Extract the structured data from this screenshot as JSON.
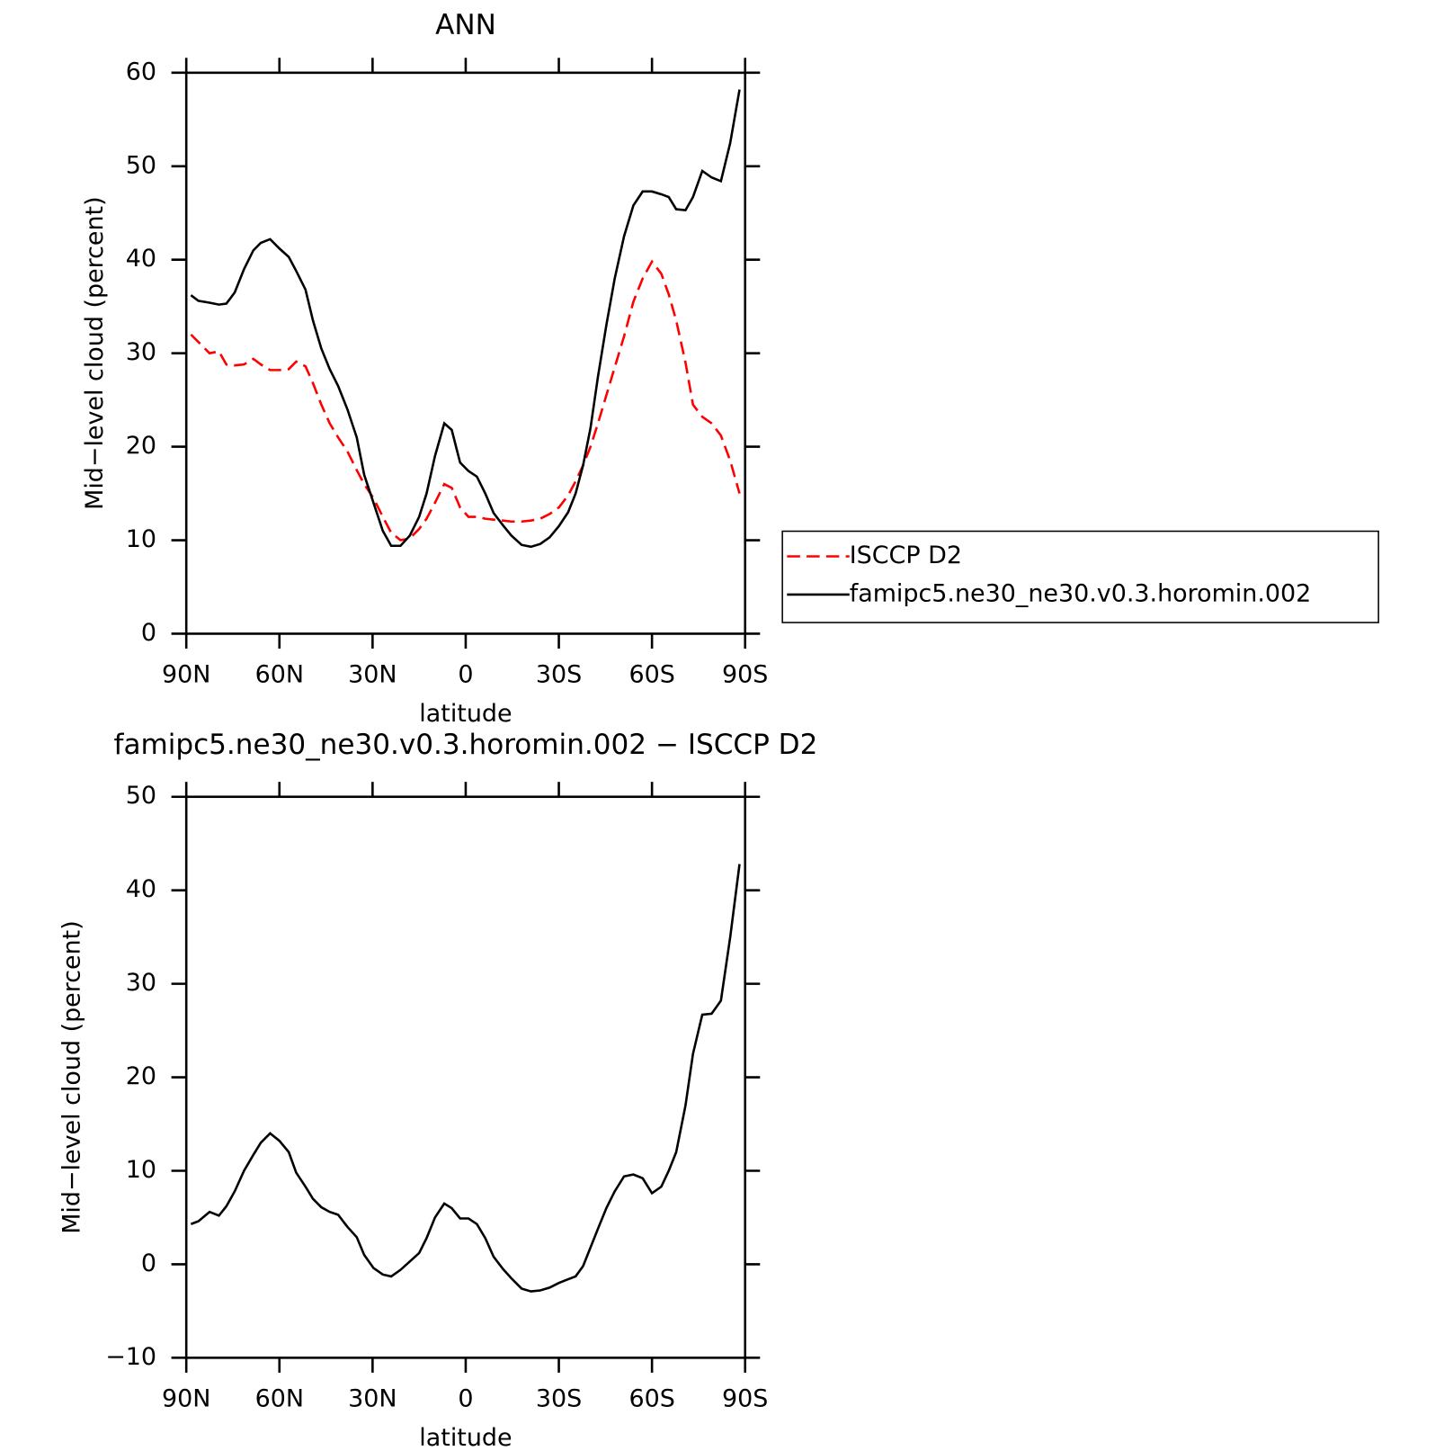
{
  "chart_data": [
    {
      "type": "line",
      "title": "ANN",
      "xlabel": "latitude",
      "ylabel": "Mid−level cloud (percent)",
      "x": [
        88.5,
        86.1,
        82.5,
        79.5,
        77.1,
        74.4,
        71.4,
        68.4,
        66,
        63,
        60,
        57,
        54.6,
        51.6,
        49.2,
        46.5,
        43.8,
        41.1,
        38.1,
        35.1,
        32.7,
        29.7,
        26.7,
        24,
        21,
        18,
        15,
        12.6,
        9.9,
        6.9,
        4.5,
        1.8,
        -0.9,
        -3.6,
        -6.3,
        -9,
        -12,
        -14.7,
        -18,
        -21,
        -24,
        -27,
        -30,
        -33,
        -35.4,
        -37.8,
        -40.2,
        -42.6,
        -45.3,
        -48,
        -51,
        -54,
        -57,
        -60,
        -63,
        -65.4,
        -67.8,
        -70.8,
        -73.2,
        -76.2,
        -79.2,
        -82.2,
        -85.2,
        -88.2
      ],
      "series": [
        {
          "name": "ISCCP D2",
          "color": "#ff0000",
          "linestyle": "dashed",
          "values": [
            32,
            31.2,
            30,
            30.2,
            28.8,
            28.7,
            28.8,
            29.4,
            28.8,
            28.2,
            28.2,
            28.3,
            29.1,
            28.6,
            26.8,
            24.5,
            22.5,
            21,
            19.5,
            17.5,
            16,
            14.5,
            12.5,
            10.8,
            10,
            10.2,
            11.2,
            12.3,
            14,
            16,
            15.6,
            13.5,
            12.5,
            12.5,
            12.3,
            12.2,
            12.1,
            12,
            12,
            12.1,
            12.3,
            12.8,
            13.5,
            14.8,
            16.3,
            18,
            20,
            22.5,
            25.5,
            28.5,
            31.8,
            35.5,
            38,
            39.8,
            38.5,
            36.3,
            33.5,
            29,
            24.5,
            23.2,
            22.5,
            21.2,
            18.5,
            15
          ]
        },
        {
          "name": "famipc5.ne30_ne30.v0.3.horomin.002",
          "color": "#000000",
          "linestyle": "solid",
          "values": [
            36.2,
            35.6,
            35.4,
            35.2,
            35.3,
            36.5,
            39,
            41,
            41.8,
            42.2,
            41.2,
            40.3,
            38.8,
            36.8,
            33.5,
            30.5,
            28.3,
            26.5,
            24,
            21,
            17,
            14,
            11,
            9.4,
            9.4,
            10.5,
            12.5,
            15,
            19,
            22.5,
            21.8,
            18.3,
            17.4,
            16.8,
            15,
            12.9,
            11.6,
            10.5,
            9.5,
            9.3,
            9.6,
            10.3,
            11.5,
            13,
            15,
            18,
            22,
            27.5,
            33,
            38,
            42.5,
            45.8,
            47.3,
            47.3,
            47,
            46.7,
            45.4,
            45.3,
            46.7,
            49.5,
            48.8,
            48.4,
            52.5,
            58.2
          ]
        }
      ],
      "xlim": [
        90,
        -90
      ],
      "xticks": [
        {
          "value": 90,
          "label": "90N"
        },
        {
          "value": 60,
          "label": "60N"
        },
        {
          "value": 30,
          "label": "30N"
        },
        0,
        {
          "value": -30,
          "label": "30S"
        },
        {
          "value": -60,
          "label": "60S"
        },
        {
          "value": -90,
          "label": "90S"
        }
      ],
      "ylim": [
        0,
        60
      ],
      "yticks": [
        0,
        10,
        20,
        30,
        40,
        50,
        60
      ],
      "legend": "right"
    },
    {
      "type": "line",
      "title": "famipc5.ne30_ne30.v0.3.horomin.002 − ISCCP D2",
      "xlabel": "latitude",
      "ylabel": "Mid−level cloud (percent)",
      "x": [
        88.5,
        86.1,
        82.5,
        79.5,
        77.1,
        74.4,
        71.4,
        68.4,
        66,
        63,
        60,
        57,
        54.6,
        51.6,
        49.2,
        46.5,
        43.8,
        41.1,
        38.1,
        35.1,
        32.7,
        29.7,
        26.7,
        24,
        21,
        18,
        15,
        12.6,
        9.9,
        6.9,
        4.5,
        1.8,
        -0.9,
        -3.6,
        -6.3,
        -9,
        -12,
        -14.7,
        -18,
        -21,
        -24,
        -27,
        -30,
        -33,
        -35.4,
        -37.8,
        -40.2,
        -42.6,
        -45.3,
        -48,
        -51,
        -54,
        -57,
        -60,
        -63,
        -65.4,
        -67.8,
        -70.8,
        -73.2,
        -76.2,
        -79.2,
        -82.2,
        -85.2,
        -88.2
      ],
      "series": [
        {
          "color": "#000000",
          "linestyle": "solid",
          "values": [
            4.3,
            4.6,
            5.6,
            5.2,
            6.2,
            7.8,
            10,
            11.7,
            13,
            14,
            13.2,
            12,
            9.8,
            8.3,
            7,
            6.1,
            5.6,
            5.3,
            4,
            2.9,
            1,
            -0.4,
            -1.1,
            -1.3,
            -0.6,
            0.3,
            1.2,
            2.8,
            5,
            6.5,
            6,
            4.9,
            4.9,
            4.3,
            2.8,
            0.8,
            -0.5,
            -1.5,
            -2.6,
            -2.9,
            -2.8,
            -2.5,
            -2,
            -1.6,
            -1.3,
            -0.2,
            1.8,
            3.8,
            6,
            7.8,
            9.4,
            9.6,
            9.2,
            7.6,
            8.3,
            10,
            12,
            17,
            22.5,
            26.7,
            26.8,
            28.2,
            35,
            42.8
          ]
        }
      ],
      "xlim": [
        90,
        -90
      ],
      "xticks": [
        {
          "value": 90,
          "label": "90N"
        },
        {
          "value": 60,
          "label": "60N"
        },
        {
          "value": 30,
          "label": "30N"
        },
        0,
        {
          "value": -30,
          "label": "30S"
        },
        {
          "value": -60,
          "label": "60S"
        },
        {
          "value": -90,
          "label": "90S"
        }
      ],
      "ylim": [
        -10,
        50
      ],
      "yticks": [
        {
          "value": -10,
          "label": "−10"
        },
        0,
        10,
        20,
        30,
        40,
        50
      ]
    }
  ]
}
